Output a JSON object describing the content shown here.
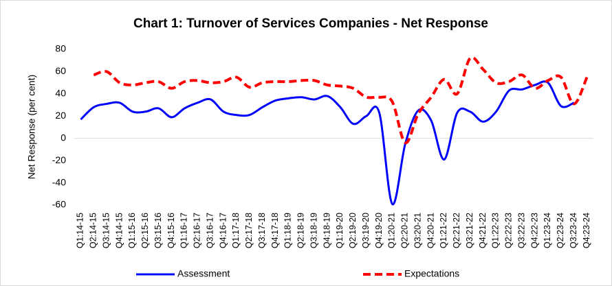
{
  "chart_data": {
    "type": "line",
    "title": "Chart 1: Turnover of Services Companies - Net Response",
    "y_label": "Net Response (per cent)",
    "categories": [
      "Q1:14-15",
      "Q2:14-15",
      "Q3:14-15",
      "Q4:14-15",
      "Q1:15-16",
      "Q2:15-16",
      "Q3:15-16",
      "Q4:15-16",
      "Q1:16-17",
      "Q2:16-17",
      "Q3:16-17",
      "Q4:16-17",
      "Q1:17-18",
      "Q2:17-18",
      "Q3:17-18",
      "Q4:17-18",
      "Q1:18-19",
      "Q2:18-19",
      "Q3:18-19",
      "Q4:18-19",
      "Q1:19-20",
      "Q2:19-20",
      "Q3:19-20",
      "Q4:19-20",
      "Q1:20-21",
      "Q2:20-21",
      "Q3:20-21",
      "Q4:20-21",
      "Q1:21-22",
      "Q2:21-22",
      "Q3:21-22",
      "Q4:21-22",
      "Q1:22-23",
      "Q2:22-23",
      "Q3:22-23",
      "Q4:22-23",
      "Q1:23-24",
      "Q2:23-24",
      "Q3:23-24",
      "Q4:23-24"
    ],
    "series": [
      {
        "name": "Assessment",
        "color": "#0000ff",
        "dash": false,
        "values": [
          17,
          28,
          31,
          32,
          24,
          24,
          27,
          19,
          27,
          32,
          35,
          24,
          21,
          21,
          28,
          34,
          36,
          37,
          35,
          38,
          28,
          13,
          20,
          23,
          -59,
          -5,
          25,
          16,
          -19,
          23,
          24,
          15,
          24,
          43,
          44,
          48,
          50,
          29,
          32,
          null
        ]
      },
      {
        "name": "Expectations",
        "color": "#ff0000",
        "dash": true,
        "values": [
          null,
          57,
          60,
          50,
          48,
          50,
          51,
          45,
          51,
          52,
          50,
          51,
          55,
          46,
          50,
          51,
          51,
          52,
          52,
          48,
          47,
          45,
          37,
          37,
          33,
          -4,
          22,
          37,
          53,
          40,
          72,
          62,
          50,
          51,
          57,
          45,
          52,
          55,
          31,
          55
        ]
      }
    ],
    "ylim": [
      -60,
      80
    ],
    "yticks": [
      -60,
      -40,
      -20,
      0,
      20,
      40,
      60,
      80
    ],
    "legend": "bottom"
  }
}
